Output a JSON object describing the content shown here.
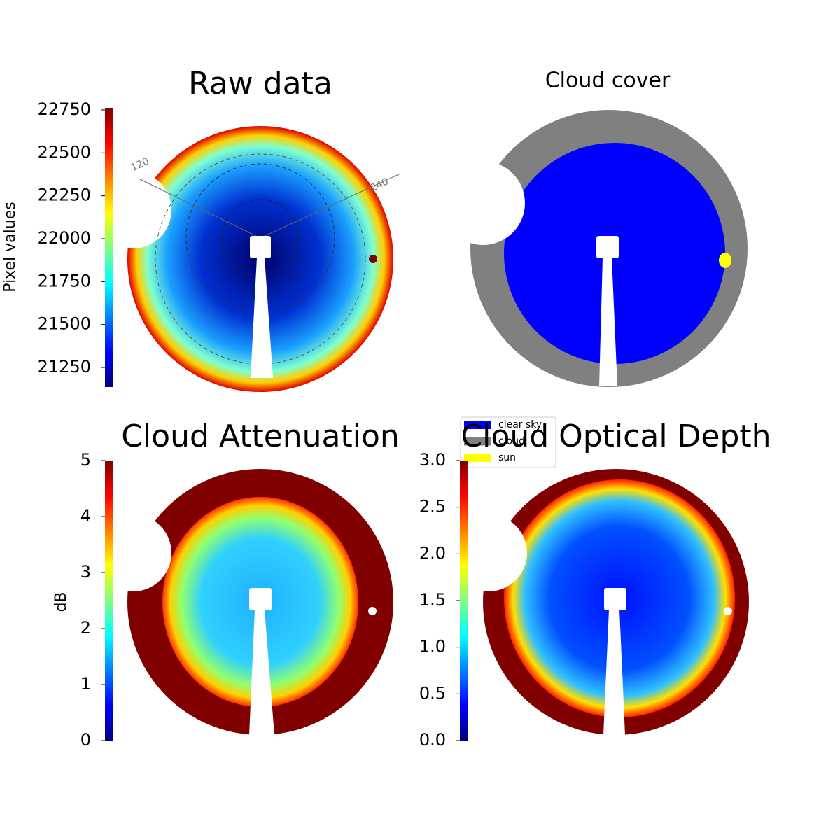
{
  "chart_data": [
    {
      "type": "image",
      "title": "Raw data",
      "colorbar_label": "Pixel values",
      "colormap": "jet",
      "ylim": [
        21136,
        22762
      ],
      "yticks": [
        21250,
        21500,
        21750,
        22000,
        22250,
        22500,
        22750
      ],
      "annotations": [
        "120",
        "240"
      ]
    },
    {
      "type": "image",
      "title": "Cloud cover",
      "legend": [
        {
          "name": "clear sky",
          "color": "#0000ff"
        },
        {
          "name": "cloud",
          "color": "#808080"
        },
        {
          "name": "sun",
          "color": "#ffff00"
        }
      ]
    },
    {
      "type": "image",
      "title": "Cloud Attenuation",
      "colorbar_label": "dB",
      "colormap": "jet",
      "ylim": [
        0,
        5
      ],
      "yticks": [
        0,
        1,
        2,
        3,
        4,
        5
      ]
    },
    {
      "type": "image",
      "title": "Cloud Optical Depth",
      "colormap": "jet",
      "ylim": [
        0,
        3
      ],
      "yticks": [
        {
          "value": 0,
          "label": "0.0"
        },
        0.5,
        {
          "value": 1,
          "label": "1.0"
        },
        1.5,
        {
          "value": 2,
          "label": "2.0"
        },
        2.5,
        {
          "value": 3,
          "label": "3.0"
        }
      ]
    }
  ]
}
